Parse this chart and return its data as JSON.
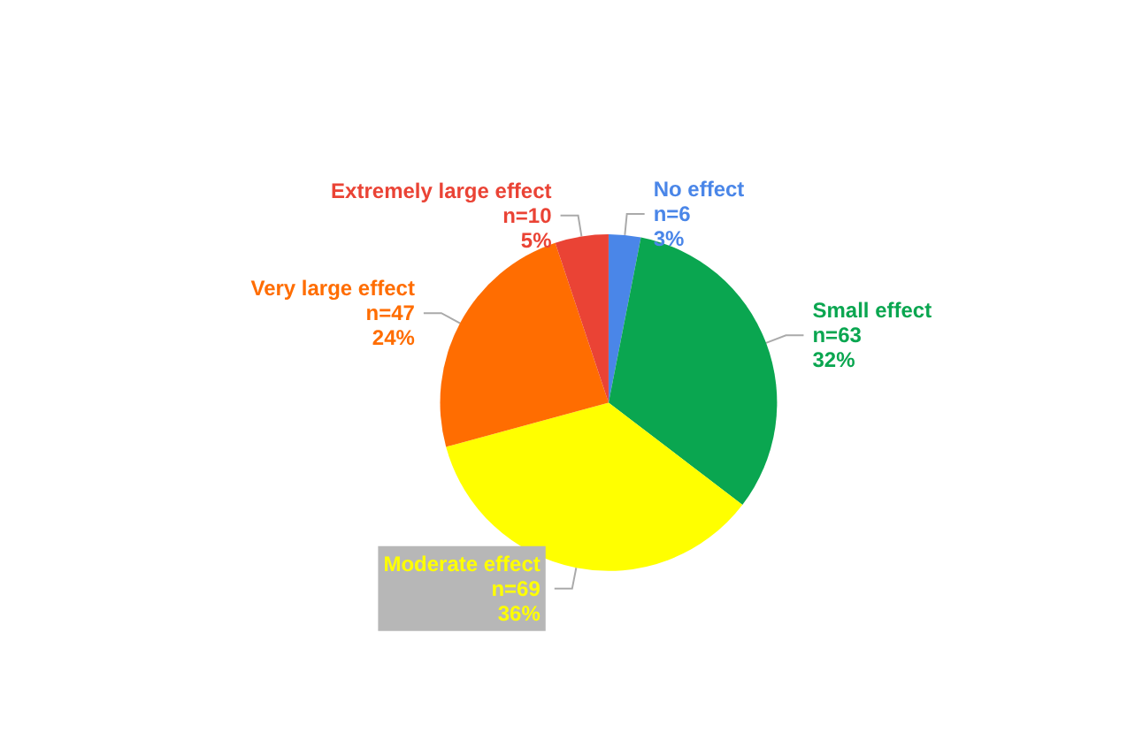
{
  "chart_data": {
    "type": "pie",
    "categories": [
      "No effect",
      "Small effect",
      "Moderate effect",
      "Very large effect",
      "Extremely large effect"
    ],
    "values": [
      6,
      63,
      69,
      47,
      10
    ],
    "value_labels": [
      "n=6\n3%",
      "n=63\n32%",
      "n=69\n36%",
      "n=47\n24%",
      "n=10\n5%"
    ],
    "colors": [
      "#4a86e8",
      "#0aa650",
      "#ffff00",
      "#ff6d01",
      "#ea4335"
    ],
    "legend": false
  }
}
